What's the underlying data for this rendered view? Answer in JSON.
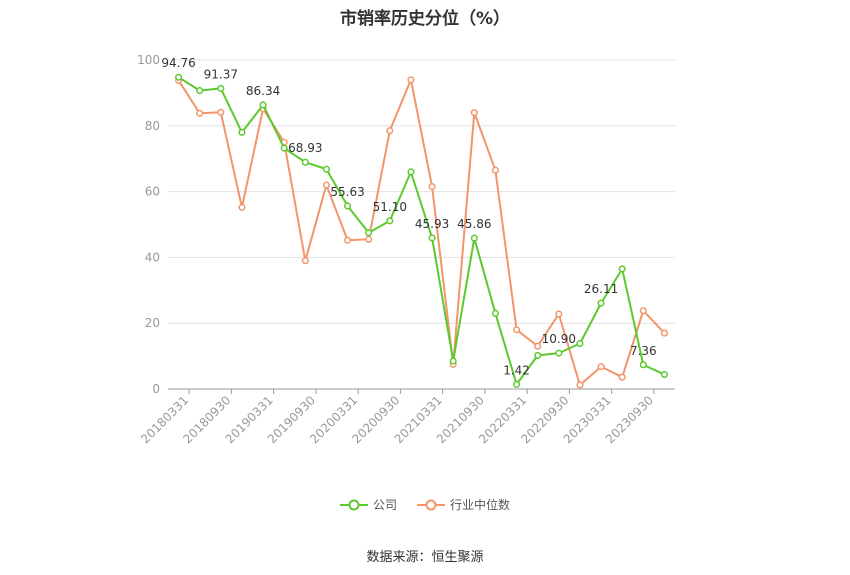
{
  "title": "市销率历史分位（%）",
  "source": "数据来源：恒生聚源",
  "chart_data": {
    "type": "line",
    "ylim": [
      0,
      100
    ],
    "yticks": [
      0,
      20,
      40,
      60,
      80,
      100
    ],
    "x": [
      "20180331",
      "20180630",
      "20180930",
      "20181231",
      "20190331",
      "20190630",
      "20190930",
      "20191231",
      "20200331",
      "20200630",
      "20200930",
      "20201231",
      "20210331",
      "20210630",
      "20210930",
      "20211231",
      "20220331",
      "20220630",
      "20220930",
      "20221231",
      "20230331",
      "20230630",
      "20230930",
      "20231231"
    ],
    "xtick_labels": [
      "20180331",
      "20180930",
      "20190331",
      "20190930",
      "20200331",
      "20200930",
      "20210331",
      "20210930",
      "20220331",
      "20220930",
      "20230331",
      "20230930"
    ],
    "grid": true,
    "legend_position": "bottom",
    "series": [
      {
        "name": "公司",
        "color": "#5cc92e",
        "values": [
          94.76,
          90.7,
          91.37,
          78.0,
          86.34,
          73.2,
          68.93,
          66.8,
          55.63,
          47.5,
          51.1,
          66.0,
          45.93,
          8.5,
          45.86,
          23.0,
          1.42,
          10.2,
          10.9,
          13.8,
          26.11,
          36.5,
          7.36,
          4.4
        ],
        "labels": {
          "0": "94.76",
          "2": "91.37",
          "4": "86.34",
          "6": "68.93",
          "8": "55.63",
          "10": "51.10",
          "12": "45.93",
          "14": "45.86",
          "16": "1.42",
          "18": "10.90",
          "20": "26.11",
          "22": "7.36"
        }
      },
      {
        "name": "行业中位数",
        "color": "#f2956a",
        "values": [
          93.8,
          83.8,
          84.1,
          55.2,
          85.2,
          75.0,
          39.0,
          62.0,
          45.2,
          45.5,
          78.5,
          94.0,
          61.5,
          7.5,
          84.0,
          66.5,
          18.0,
          13.0,
          22.8,
          1.2,
          6.8,
          3.6,
          23.8,
          17.0
        ]
      }
    ]
  }
}
